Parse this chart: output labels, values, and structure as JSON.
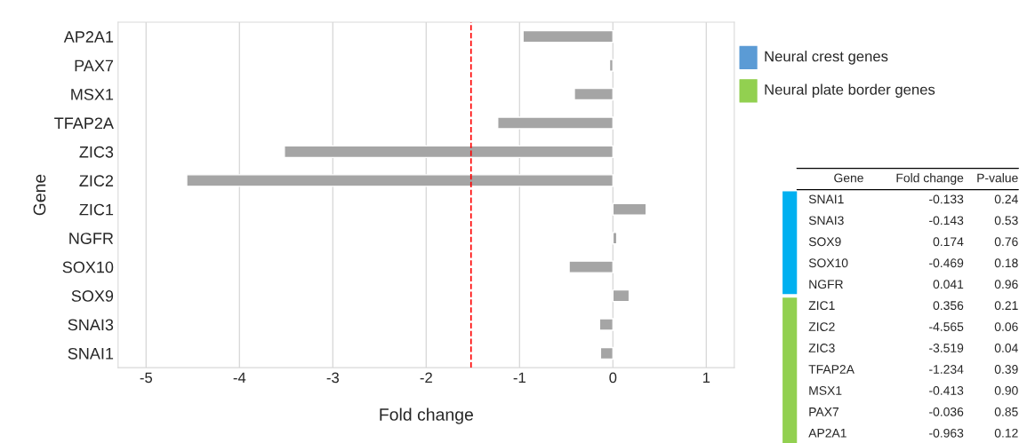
{
  "chart_data": [
    {
      "type": "bar",
      "orientation": "horizontal",
      "xlabel": "Fold change",
      "ylabel": "Gene",
      "categories": [
        "AP2A1",
        "PAX7",
        "MSX1",
        "TFAP2A",
        "ZIC3",
        "ZIC2",
        "ZIC1",
        "NGFR",
        "SOX10",
        "SOX9",
        "SNAI3",
        "SNAI1"
      ],
      "values": [
        -0.963,
        -0.036,
        -0.413,
        -1.234,
        -3.519,
        -4.565,
        0.356,
        0.041,
        -0.469,
        0.174,
        -0.143,
        -0.133
      ],
      "color": "#a5a5a5",
      "xlim": [
        -5.3,
        1.3
      ],
      "xticks": [
        -5,
        -4,
        -3,
        -2,
        -1,
        0,
        1
      ],
      "grid": "x",
      "ref_lines": [
        {
          "axis": "x",
          "value": -1.52,
          "color": "#ff0000",
          "line_style": "dashed"
        }
      ]
    },
    {
      "type": "other",
      "legend": "top",
      "series": [
        {
          "name": "Neural crest genes",
          "color": "#5b9bd5"
        },
        {
          "name": "Neural plate border genes",
          "color": "#92d050"
        }
      ],
      "annotations": [
        "Gene",
        "Fold change",
        "P-value"
      ],
      "y_categories": [
        "SNAI1",
        "SNAI3",
        "SOX9",
        "SOX10",
        "NGFR",
        "ZIC1",
        "ZIC2",
        "ZIC3",
        "TFAP2A",
        "MSX1",
        "PAX7",
        "AP2A1"
      ],
      "cell_labels": [
        [
          "-0.133",
          "0.24"
        ],
        [
          "-0.143",
          "0.53"
        ],
        [
          "0.174",
          "0.76"
        ],
        [
          "-0.469",
          "0.18"
        ],
        [
          "0.041",
          "0.96"
        ],
        [
          "0.356",
          "0.21"
        ],
        [
          "-4.565",
          "0.06"
        ],
        [
          "-3.519",
          "0.04"
        ],
        [
          "-1.234",
          "0.39"
        ],
        [
          "-0.413",
          "0.90"
        ],
        [
          "-0.036",
          "0.85"
        ],
        [
          "-0.963",
          "0.12"
        ]
      ],
      "colors": [
        "#00b0f0",
        "#00b0f0",
        "#00b0f0",
        "#00b0f0",
        "#00b0f0",
        "#92d050",
        "#92d050",
        "#92d050",
        "#92d050",
        "#92d050",
        "#92d050",
        "#92d050"
      ]
    }
  ]
}
